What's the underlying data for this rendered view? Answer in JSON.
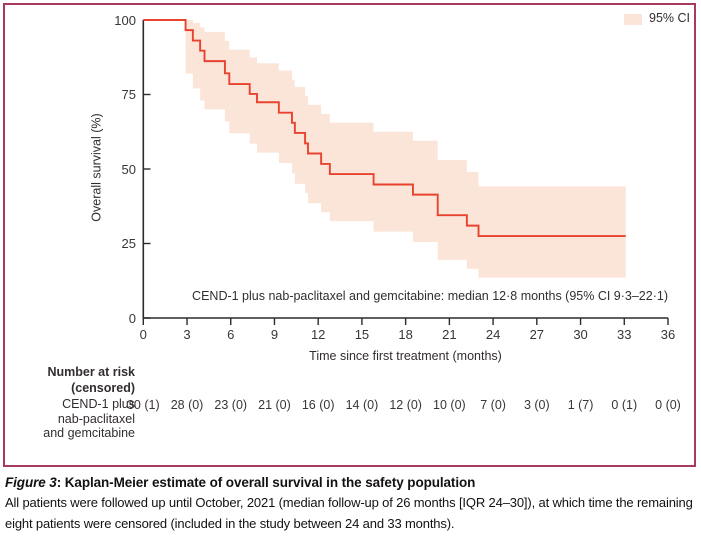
{
  "figure": {
    "caption_title_prefix": "Figure 3",
    "caption_title_rest": ": Kaplan-Meier estimate of overall survival in the safety population",
    "caption_body": "All patients were followed up until October, 2021 (median follow-up of 26 months [IQR 24–30]), at which time the remaining eight patients were censored (included in the study between 24 and 33 months)."
  },
  "chart_data": {
    "type": "line",
    "subtype": "kaplan-meier-step-with-ci-band",
    "title": "",
    "xlabel": "Time since first treatment (months)",
    "ylabel": "Overall survival (%)",
    "xlim": [
      0,
      36
    ],
    "ylim": [
      0,
      100
    ],
    "x_ticks": [
      0,
      3,
      6,
      9,
      12,
      15,
      18,
      21,
      24,
      27,
      30,
      33,
      36
    ],
    "y_ticks": [
      0,
      25,
      50,
      75,
      100
    ],
    "grid": false,
    "legend": [
      {
        "label": "95% CI",
        "swatch_color": "#fbe5d9"
      }
    ],
    "legend_position": "top-right",
    "annotation": "CEND-1 plus nab-paclitaxel and gemcitabine: median 12·8 months (95% CI 9·3–22·1)",
    "colors": {
      "curve": "#e8432f",
      "ci_band": "#fbe5d9",
      "axis": "#2e2a2b",
      "frame": "#a83a5f"
    },
    "t_end": 33.1,
    "series": [
      {
        "name": "CEND-1 plus nab-paclitaxel and gemcitabine",
        "median_months": "12·8",
        "ci_95": "9·3–22·1",
        "steps": [
          {
            "t": 0,
            "s": 100
          },
          {
            "t": 2.9,
            "s": 96.6,
            "lo": 82,
            "hi": 100
          },
          {
            "t": 3.4,
            "s": 93.1,
            "lo": 77,
            "hi": 99
          },
          {
            "t": 3.9,
            "s": 89.7,
            "lo": 73,
            "hi": 97.5
          },
          {
            "t": 4.2,
            "s": 86.2,
            "lo": 70,
            "hi": 96
          },
          {
            "t": 5.6,
            "s": 82.1,
            "lo": 66,
            "hi": 93
          },
          {
            "t": 5.9,
            "s": 78.5,
            "lo": 62,
            "hi": 90
          },
          {
            "t": 7.3,
            "s": 75.2,
            "lo": 58.5,
            "hi": 87.5
          },
          {
            "t": 7.8,
            "s": 72.4,
            "lo": 55.5,
            "hi": 85.5
          },
          {
            "t": 9.3,
            "s": 68.9,
            "lo": 52,
            "hi": 83
          },
          {
            "t": 10.2,
            "s": 65.5,
            "lo": 48.5,
            "hi": 80
          },
          {
            "t": 10.4,
            "s": 62.1,
            "lo": 45,
            "hi": 77.5
          },
          {
            "t": 11.1,
            "s": 58.6,
            "lo": 42,
            "hi": 74.5
          },
          {
            "t": 11.3,
            "s": 55.2,
            "lo": 38.5,
            "hi": 71.5
          },
          {
            "t": 12.2,
            "s": 51.7,
            "lo": 35.5,
            "hi": 68.5
          },
          {
            "t": 12.8,
            "s": 48.3,
            "lo": 32.5,
            "hi": 65.5
          },
          {
            "t": 15.8,
            "s": 44.8,
            "lo": 29,
            "hi": 62.5
          },
          {
            "t": 18.5,
            "s": 41.4,
            "lo": 25.5,
            "hi": 59.5
          },
          {
            "t": 20.2,
            "s": 34.5,
            "lo": 19.5,
            "hi": 53
          },
          {
            "t": 22.2,
            "s": 31.0,
            "lo": 16.5,
            "hi": 49
          },
          {
            "t": 23.0,
            "s": 27.5,
            "lo": 13.5,
            "hi": 44.2
          }
        ]
      }
    ],
    "number_at_risk": {
      "header": [
        "Number at risk",
        "(censored)"
      ],
      "row_label": [
        "CEND-1 plus",
        "nab-paclitaxel",
        "and gemcitabine"
      ],
      "times": [
        0,
        3,
        6,
        9,
        12,
        15,
        18,
        21,
        24,
        27,
        30,
        33,
        36
      ],
      "values": [
        "30 (1)",
        "28 (0)",
        "23 (0)",
        "21 (0)",
        "16 (0)",
        "14 (0)",
        "12 (0)",
        "10 (0)",
        "7 (0)",
        "3 (0)",
        "1 (7)",
        "0 (1)",
        "0 (0)"
      ]
    }
  }
}
